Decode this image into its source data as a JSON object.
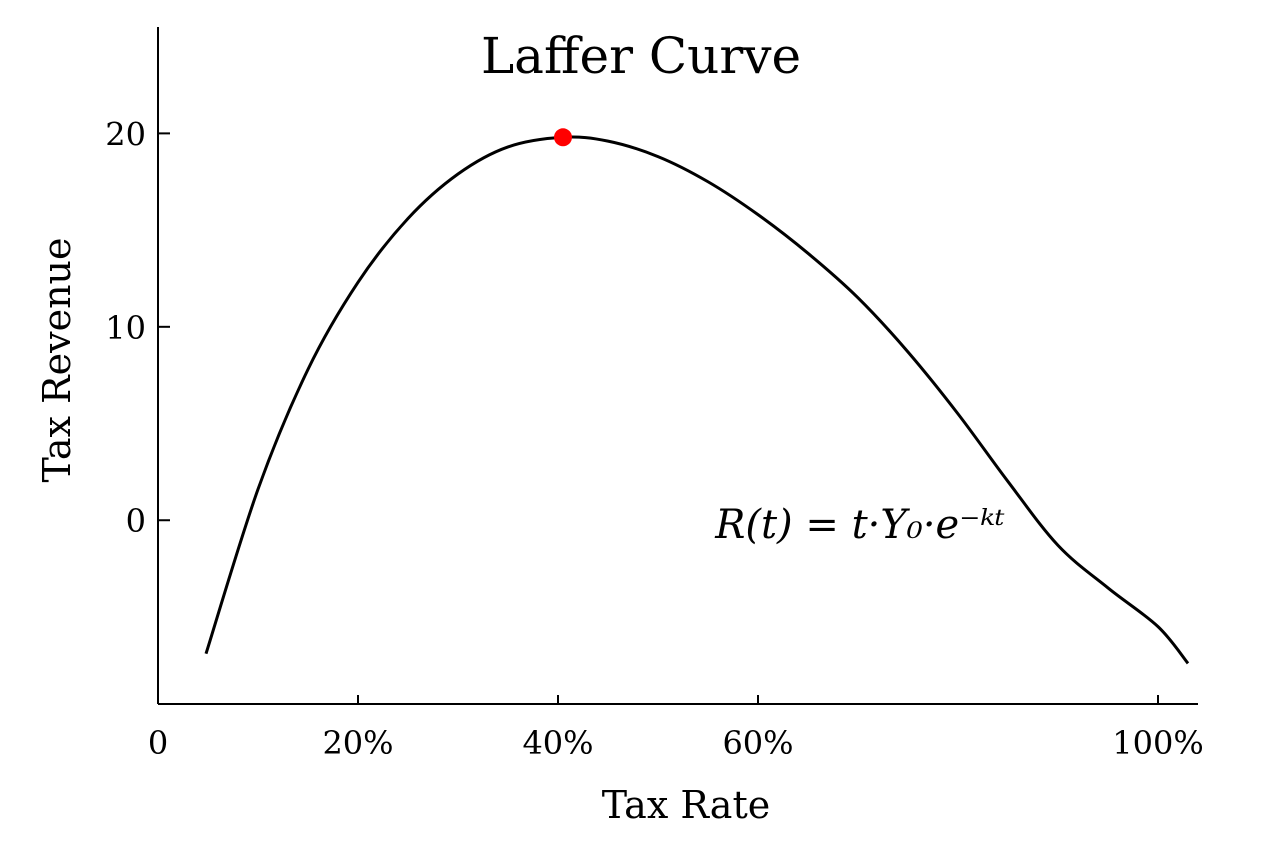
{
  "chart_data": {
    "type": "line",
    "title": "Laffer Curve",
    "xlabel": "Tax Rate",
    "ylabel": "Tax Revenue",
    "annotation": "R(t) = t·Y₀·e⁻ᵏᵗ",
    "x_ticks": [
      {
        "value": 0,
        "label": "0"
      },
      {
        "value": 20,
        "label": "20%"
      },
      {
        "value": 40,
        "label": "40%"
      },
      {
        "value": 60,
        "label": "60%"
      },
      {
        "value": 100,
        "label": "100%"
      }
    ],
    "y_ticks": [
      {
        "value": 0,
        "label": "0"
      },
      {
        "value": 10,
        "label": "10"
      },
      {
        "value": 20,
        "label": "20"
      }
    ],
    "xlim": [
      0,
      104
    ],
    "ylim": [
      -9.5,
      25.5
    ],
    "grid": false,
    "series": [
      {
        "color": "#000000",
        "x": [
          4.8,
          10,
          15,
          20,
          25,
          30,
          35,
          40.5,
          45,
          50,
          55,
          60,
          65,
          70,
          75,
          80,
          85,
          90,
          95,
          100,
          103
        ],
        "y": [
          -6.9,
          1.6,
          7.8,
          12.3,
          15.6,
          17.9,
          19.3,
          19.8,
          19.6,
          18.8,
          17.5,
          15.8,
          13.8,
          11.5,
          8.7,
          5.5,
          2.0,
          -1.3,
          -3.5,
          -5.5,
          -7.4
        ]
      }
    ],
    "highlight": {
      "x": 40.5,
      "y": 19.8,
      "color": "#ff0000"
    }
  }
}
